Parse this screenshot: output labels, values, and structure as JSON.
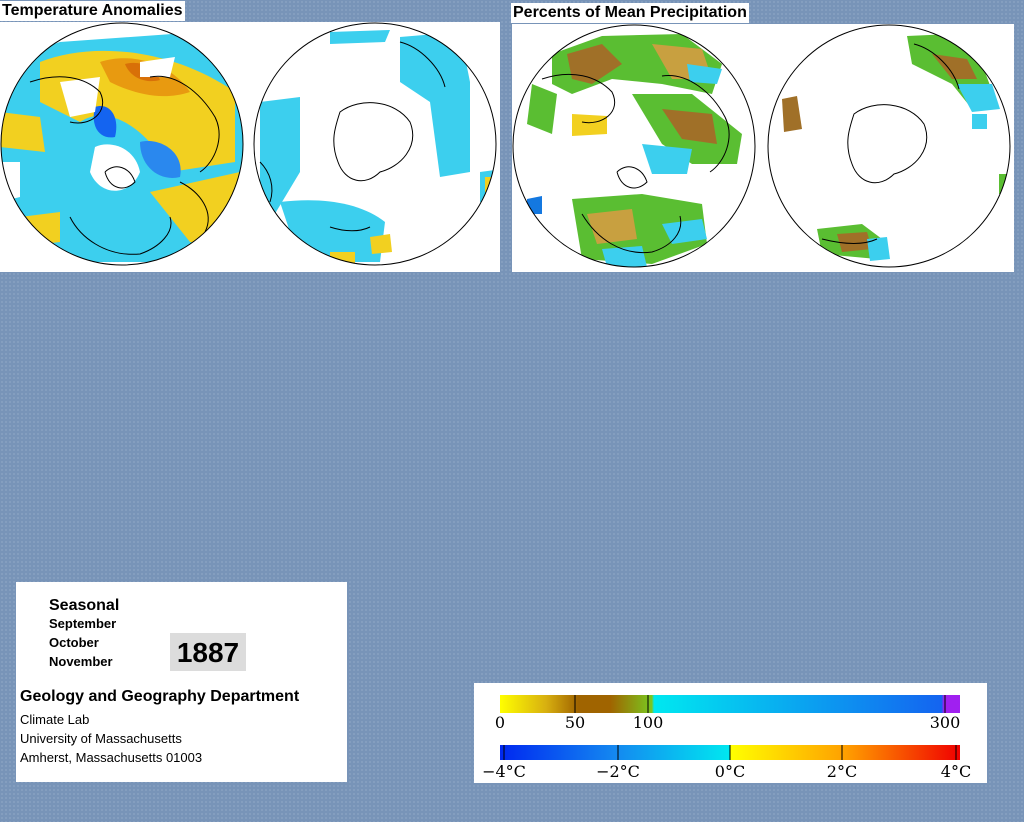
{
  "temperature_panel": {
    "title": "Temperature Anomalies"
  },
  "precipitation_panel": {
    "title": "Percents of Mean Precipitation"
  },
  "info": {
    "period_type": "Seasonal",
    "months": [
      "September",
      "October",
      "November"
    ],
    "year": "1887",
    "department": "Geology and Geography Department",
    "lab": "Climate Lab",
    "university": "University of Massachusetts",
    "address": "Amherst, Massachusetts 01003"
  },
  "legend": {
    "precipitation_scale": {
      "tick_labels": [
        "0",
        "50",
        "100",
        "300"
      ],
      "values": [
        0,
        50,
        100,
        300
      ],
      "colors": [
        "#ffff00",
        "#c89600",
        "#a06400",
        "#7ac820",
        "#00e0f0",
        "#1464f0",
        "#a020f0"
      ]
    },
    "temperature_scale": {
      "tick_labels": [
        "−4°C",
        "−2°C",
        "0°C",
        "2°C",
        "4°C"
      ],
      "values": [
        -4,
        -2,
        0,
        2,
        4
      ],
      "colors": [
        "#0028f0",
        "#00c8f0",
        "#ffff00",
        "#ff8c00",
        "#f00000"
      ]
    }
  },
  "colors": {
    "background": "#7894b8",
    "cold": "#3ccfee",
    "warm": "#f2d020",
    "dry_brown": "#a07028",
    "wet_green": "#5abe32"
  }
}
